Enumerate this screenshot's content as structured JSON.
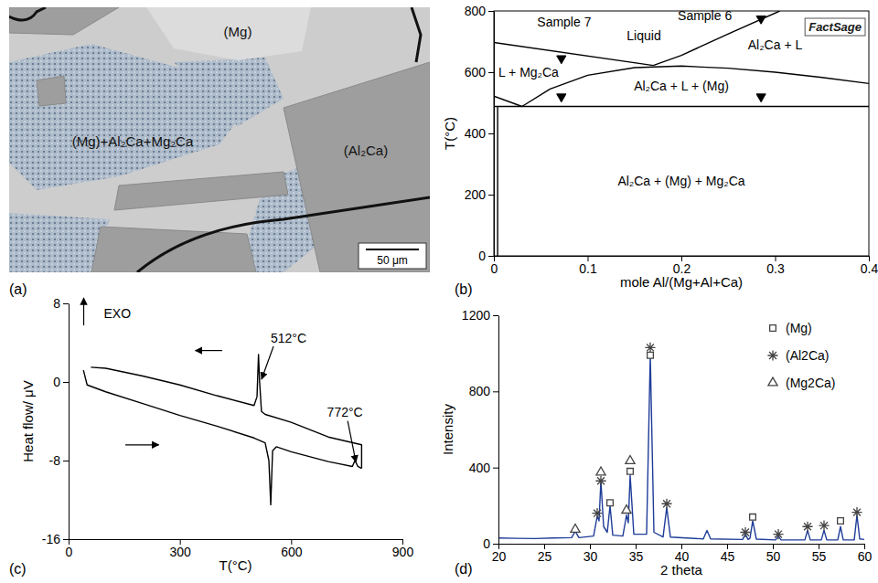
{
  "chart_data": [
    {
      "type": "image",
      "panel": "(a)",
      "labels": [
        "(Mg)",
        "(Mg)+Al₂Ca+Mg₂Ca",
        "(Al₂Ca)"
      ],
      "scale_bar": "50 μm"
    },
    {
      "type": "line",
      "panel": "(b)",
      "xlabel": "mole Al/(Mg+Al+Ca)",
      "ylabel": "T(°C)",
      "logo": "FactSage",
      "xlim": [
        0,
        0.4
      ],
      "ylim": [
        0,
        800
      ],
      "xticks": [
        0,
        0.1,
        0.2,
        0.3,
        0.4
      ],
      "yticks": [
        0,
        200,
        400,
        600,
        800
      ],
      "color": "#000000",
      "series": [
        {
          "x": [
            0,
            0.17
          ],
          "values": [
            697,
            622
          ]
        },
        {
          "x": [
            0.17,
            0.2,
            0.25,
            0.305
          ],
          "values": [
            622,
            655,
            725,
            800
          ]
        },
        {
          "x": [
            0.03,
            0.06,
            0.1,
            0.15,
            0.2,
            0.25,
            0.3,
            0.35,
            0.4
          ],
          "values": [
            488,
            545,
            590,
            615,
            620,
            613,
            600,
            583,
            563
          ]
        },
        {
          "x": [
            0,
            0.03
          ],
          "values": [
            522,
            488
          ]
        },
        {
          "x": [
            0,
            0.4
          ],
          "values": [
            488,
            488
          ]
        },
        {
          "x": [
            0.004,
            0.004
          ],
          "values": [
            0,
            488
          ]
        },
        {
          "type": "scatter",
          "marker": "triangle-down",
          "x": [
            0.072,
            0.072,
            0.285,
            0.285
          ],
          "values": [
            645,
            520,
            775,
            520
          ]
        }
      ],
      "annotations": [
        {
          "text": "Sample 7",
          "x": 0.075,
          "y": 750
        },
        {
          "text": "Sample 6",
          "x": 0.225,
          "y": 770
        },
        {
          "text": "Liquid",
          "x": 0.16,
          "y": 705
        },
        {
          "text": "Al₂Ca + L",
          "x": 0.3,
          "y": 675
        },
        {
          "text": "L + Mg₂Ca",
          "x": 0.037,
          "y": 585
        },
        {
          "text": "Al₂Ca + L + (Mg)",
          "x": 0.2,
          "y": 540
        },
        {
          "text": "Al₂Ca + (Mg) + Mg₂Ca",
          "x": 0.2,
          "y": 230
        }
      ]
    },
    {
      "type": "line",
      "panel": "(c)",
      "xlabel": "T(°C)",
      "ylabel": "Heat flow/ μV",
      "xlim": [
        0,
        900
      ],
      "ylim": [
        -16,
        8
      ],
      "xticks": [
        0,
        300,
        600,
        900
      ],
      "yticks": [
        -16,
        -8,
        0,
        8
      ],
      "color": "#000000",
      "series": [
        {
          "x": [
            40,
            50,
            100,
            200,
            300,
            400,
            500,
            530,
            540,
            545,
            550,
            560,
            600,
            700,
            765,
            772,
            780,
            790
          ],
          "values": [
            1.2,
            -0.3,
            -1,
            -2.2,
            -3.4,
            -4.5,
            -5.7,
            -6.2,
            -8,
            -12.5,
            -7,
            -6.6,
            -7.1,
            -8.1,
            -8.6,
            -8.0,
            -8.6,
            -8.8
          ]
        },
        {
          "x": [
            790,
            790,
            700,
            600,
            530,
            520,
            515,
            512,
            508,
            500,
            400,
            300,
            200,
            100,
            60
          ],
          "values": [
            -8.8,
            -6.4,
            -5.6,
            -4.1,
            -3.3,
            -3.0,
            0,
            2.8,
            -1.5,
            -2.4,
            -1.4,
            -0.3,
            0.6,
            1.4,
            1.5
          ]
        }
      ],
      "annotations": [
        {
          "text": "EXO",
          "x": 95,
          "y": 6.5
        },
        {
          "text": "512°C",
          "x": 545,
          "y": 4
        },
        {
          "text": "772°C",
          "x": 745,
          "y": -3.5
        }
      ]
    },
    {
      "type": "line",
      "panel": "(d)",
      "xlabel": "2 theta",
      "ylabel": "Intensity",
      "xlim": [
        20,
        60
      ],
      "ylim": [
        0,
        1200
      ],
      "xticks": [
        20,
        25,
        30,
        35,
        40,
        45,
        50,
        55,
        60
      ],
      "yticks": [
        0,
        400,
        800,
        1200
      ],
      "legend": "upper right",
      "series": [
        {
          "color": "#1f3d99",
          "x": [
            20,
            22,
            24,
            26,
            28.0,
            28.4,
            28.8,
            30.4,
            30.8,
            31.0,
            31.2,
            31.5,
            31.9,
            32.2,
            32.5,
            33.6,
            34.0,
            34.2,
            34.4,
            34.8,
            36.2,
            36.6,
            37.0,
            38.0,
            38.4,
            38.8,
            42.4,
            42.8,
            43.2,
            46.7,
            47.0,
            47.3,
            47.5,
            47.8,
            48.2,
            50.3,
            50.6,
            50.9,
            53.5,
            53.8,
            54.1,
            55.3,
            55.6,
            55.9,
            57.1,
            57.4,
            57.7,
            58.9,
            59.2,
            59.5,
            60
          ],
          "values": [
            30,
            28,
            27,
            30,
            32,
            65,
            32,
            40,
            145,
            120,
            330,
            90,
            60,
            200,
            45,
            40,
            150,
            110,
            360,
            50,
            50,
            990,
            60,
            35,
            190,
            35,
            25,
            70,
            25,
            22,
            50,
            22,
            28,
            120,
            24,
            20,
            40,
            20,
            20,
            70,
            20,
            20,
            70,
            20,
            20,
            90,
            20,
            20,
            150,
            25,
            22
          ]
        },
        {
          "name": "(Mg)",
          "type": "scatter",
          "marker": "square",
          "color": "#444444",
          "x": [
            32.2,
            34.4,
            36.6,
            47.8,
            57.4
          ],
          "values": [
            215,
            380,
            990,
            140,
            120
          ]
        },
        {
          "name": "(Al2Ca)",
          "type": "scatter",
          "marker": "asterisk",
          "color": "#444444",
          "x": [
            30.8,
            31.2,
            36.6,
            38.4,
            47.0,
            50.6,
            53.8,
            55.6,
            59.2
          ],
          "values": [
            160,
            330,
            1030,
            210,
            60,
            50,
            90,
            95,
            165
          ]
        },
        {
          "name": "(Mg2Ca)",
          "type": "scatter",
          "marker": "triangle",
          "color": "#444444",
          "x": [
            28.4,
            31.2,
            34.0,
            34.4
          ],
          "values": [
            75,
            375,
            175,
            435
          ]
        }
      ]
    }
  ]
}
